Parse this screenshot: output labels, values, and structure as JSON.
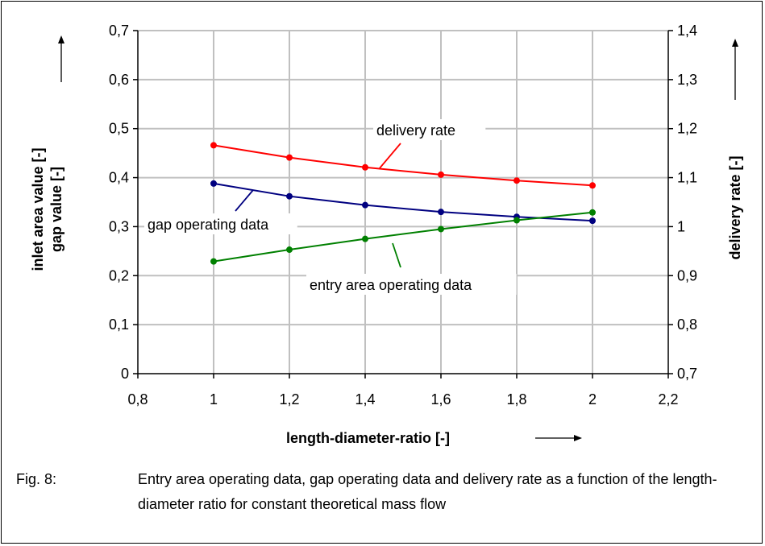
{
  "chart_data": {
    "type": "line",
    "x": [
      1,
      1.2,
      1.4,
      1.6,
      1.8,
      2
    ],
    "x_ticks": [
      "0,8",
      "1",
      "1,2",
      "1,4",
      "1,6",
      "1,8",
      "2",
      "2,2"
    ],
    "y_ticks_left": [
      "0",
      "0,1",
      "0,2",
      "0,3",
      "0,4",
      "0,5",
      "0,6",
      "0,7"
    ],
    "y_ticks_right": [
      "0,7",
      "0,8",
      "0,9",
      "1",
      "1,1",
      "1,2",
      "1,3",
      "1,4"
    ],
    "xlim": [
      0.8,
      2.2
    ],
    "ylim_left": [
      0,
      0.7
    ],
    "ylim_right": [
      0.7,
      1.4
    ],
    "grid": true,
    "xlabel": "length-diameter-ratio [-]",
    "ylabel_left_lines": [
      "inlet area value [-]",
      "gap value [-]"
    ],
    "ylabel_right": "delivery rate [-]",
    "series": [
      {
        "name": "delivery rate",
        "axis": "right",
        "color": "#ff0000",
        "values": [
          1.166,
          1.141,
          1.121,
          1.106,
          1.094,
          1.084
        ]
      },
      {
        "name": "gap operating data",
        "axis": "left",
        "color": "#000080",
        "values": [
          0.388,
          0.362,
          0.344,
          0.33,
          0.32,
          0.312
        ]
      },
      {
        "name": "entry area operating data",
        "axis": "left",
        "color": "#008000",
        "values": [
          0.229,
          0.253,
          0.275,
          0.295,
          0.313,
          0.329
        ]
      }
    ]
  },
  "caption": {
    "label": "Fig. 8:",
    "text": "Entry area operating data, gap operating data and delivery rate as a function of the length-diameter ratio for constant theoretical mass flow"
  }
}
